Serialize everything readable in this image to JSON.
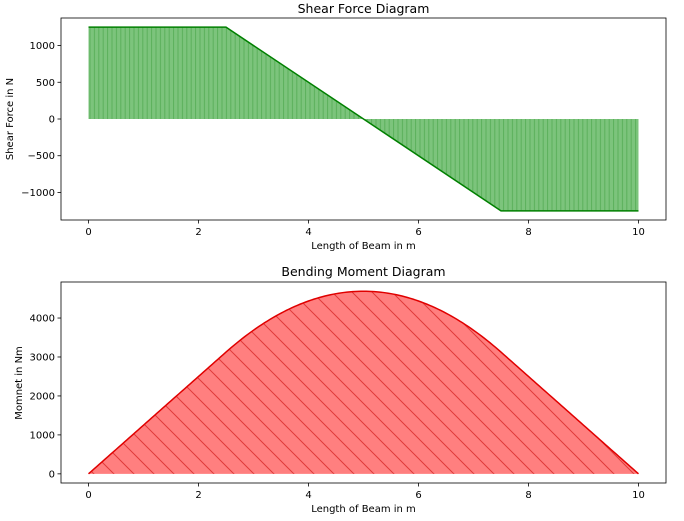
{
  "chart_data": [
    {
      "type": "area",
      "title": "Shear Force Diagram",
      "xlabel": "Length of Beam in m",
      "ylabel": "Shear Force in N",
      "xlim": [
        -0.5,
        10.5
      ],
      "ylim": [
        -1375,
        1375
      ],
      "xticks": [
        0,
        2,
        4,
        6,
        8,
        10
      ],
      "yticks": [
        -1000,
        -500,
        0,
        500,
        1000
      ],
      "x": [
        0,
        2.5,
        7.5,
        10
      ],
      "y": [
        1250,
        1250,
        -1250,
        -1250
      ],
      "grid": false,
      "legend": "none",
      "colors": {
        "line": "#008000",
        "fill": "#7cc47c",
        "hatch": "#4caf50"
      },
      "hatch": "vertical"
    },
    {
      "type": "area",
      "title": "Bending Moment Diagram",
      "xlabel": "Length of Beam in m",
      "ylabel": "Momnet in Nm",
      "xlim": [
        -0.5,
        10.5
      ],
      "ylim": [
        -235,
        4925
      ],
      "xticks": [
        0,
        2,
        4,
        6,
        8,
        10
      ],
      "yticks": [
        0,
        1000,
        2000,
        3000,
        4000
      ],
      "x": [
        0,
        2.5,
        5,
        7.5,
        10
      ],
      "y": [
        0,
        3125,
        4688,
        3125,
        0
      ],
      "curve": "linear 0–2.5, parabolic 2.5–7.5, linear 7.5–10",
      "grid": false,
      "legend": "none",
      "colors": {
        "line": "#e00000",
        "fill": "#ff7f7f",
        "hatch": "#e84a4a"
      },
      "hatch": "diagonal"
    }
  ]
}
